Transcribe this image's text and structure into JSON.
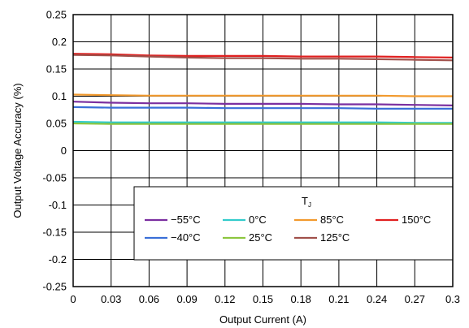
{
  "chart_data": {
    "type": "line",
    "xlabel": "Output Current (A)",
    "ylabel": "Output Voltage Accuracy (%)",
    "xlim": [
      0,
      0.3
    ],
    "ylim": [
      -0.25,
      0.25
    ],
    "xticks": [
      "0",
      "0.03",
      "0.06",
      "0.09",
      "0.12",
      "0.15",
      "0.18",
      "0.21",
      "0.24",
      "0.27",
      "0.3"
    ],
    "yticks": [
      "0.25",
      "0.2",
      "0.15",
      "0.1",
      "0.05",
      "0",
      "-0.05",
      "-0.1",
      "-0.15",
      "-0.2",
      "-0.25"
    ],
    "grid": true,
    "legend": {
      "title_main": "T",
      "title_sub": "J",
      "placement": "bottom-right",
      "columns": 4
    },
    "series": [
      {
        "name": "−55°C",
        "color": "#7B2FA0",
        "x": [
          0,
          0.03,
          0.06,
          0.09,
          0.12,
          0.15,
          0.18,
          0.21,
          0.24,
          0.27,
          0.3
        ],
        "y": [
          0.09,
          0.088,
          0.087,
          0.087,
          0.086,
          0.086,
          0.086,
          0.085,
          0.085,
          0.084,
          0.083
        ]
      },
      {
        "name": "0°C",
        "color": "#33CCCC",
        "x": [
          0,
          0.03,
          0.06,
          0.09,
          0.12,
          0.15,
          0.18,
          0.21,
          0.24,
          0.27,
          0.3
        ],
        "y": [
          0.053,
          0.052,
          0.052,
          0.052,
          0.052,
          0.052,
          0.052,
          0.052,
          0.052,
          0.051,
          0.051
        ]
      },
      {
        "name": "85°C",
        "color": "#F29A2E",
        "x": [
          0,
          0.03,
          0.06,
          0.09,
          0.12,
          0.15,
          0.18,
          0.21,
          0.24,
          0.27,
          0.3
        ],
        "y": [
          0.103,
          0.102,
          0.101,
          0.101,
          0.101,
          0.101,
          0.101,
          0.101,
          0.101,
          0.1,
          0.1
        ]
      },
      {
        "name": "150°C",
        "color": "#E02020",
        "x": [
          0,
          0.03,
          0.06,
          0.09,
          0.12,
          0.15,
          0.18,
          0.21,
          0.24,
          0.27,
          0.3
        ],
        "y": [
          0.178,
          0.177,
          0.175,
          0.174,
          0.174,
          0.174,
          0.173,
          0.173,
          0.173,
          0.172,
          0.171
        ]
      },
      {
        "name": "−40°C",
        "color": "#3A6FD8",
        "x": [
          0,
          0.03,
          0.06,
          0.09,
          0.12,
          0.15,
          0.18,
          0.21,
          0.24,
          0.27,
          0.3
        ],
        "y": [
          0.08,
          0.079,
          0.079,
          0.079,
          0.078,
          0.078,
          0.078,
          0.078,
          0.077,
          0.077,
          0.077
        ]
      },
      {
        "name": "25°C",
        "color": "#8CC63F",
        "x": [
          0,
          0.03,
          0.06,
          0.09,
          0.12,
          0.15,
          0.18,
          0.21,
          0.24,
          0.27,
          0.3
        ],
        "y": [
          0.05,
          0.049,
          0.049,
          0.049,
          0.049,
          0.049,
          0.049,
          0.049,
          0.049,
          0.049,
          0.049
        ]
      },
      {
        "name": "125°C",
        "color": "#A0504A",
        "x": [
          0,
          0.03,
          0.06,
          0.09,
          0.12,
          0.15,
          0.18,
          0.21,
          0.24,
          0.27,
          0.3
        ],
        "y": [
          0.176,
          0.175,
          0.173,
          0.171,
          0.17,
          0.17,
          0.169,
          0.169,
          0.168,
          0.167,
          0.166
        ]
      }
    ]
  }
}
